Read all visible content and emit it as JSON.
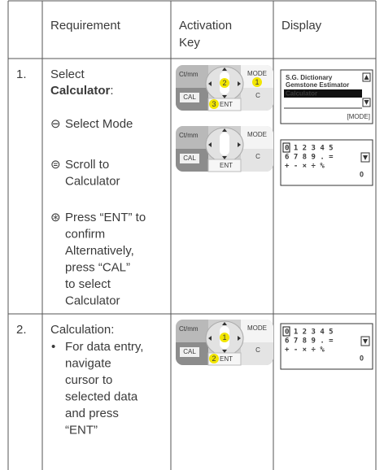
{
  "table": {
    "header": {
      "requirement": "Requirement",
      "activation_key": [
        "Activation",
        "Key"
      ],
      "display": "Display"
    },
    "rows": [
      {
        "number": "1.",
        "requirement": {
          "lead": "Select",
          "bold": "Calculator",
          "colon": ":",
          "steps": [
            {
              "symbol": "⊖",
              "lines": [
                "Select Mode"
              ]
            },
            {
              "symbol": "⊜",
              "lines": [
                "Scroll to",
                "Calculator"
              ]
            },
            {
              "symbol": "⊛",
              "lines": [
                "Press “ENT” to",
                "confirm",
                "Alternatively,",
                "press “CAL”",
                "to select",
                "Calculator"
              ]
            }
          ]
        },
        "keypads": [
          {
            "ctmm": "Ct/mm",
            "mode": "MODE",
            "cal": "CAL",
            "ent": "ENT",
            "c": "C",
            "center_badge": "2",
            "mode_badge": "1",
            "ent_badge": "3"
          },
          {
            "ctmm": "Ct/mm",
            "mode": "MODE",
            "cal": "CAL",
            "ent": "ENT",
            "c": "C"
          }
        ],
        "displays": [
          {
            "items": [
              "S.G. Dictionary",
              "Gemstone Estimator"
            ],
            "highlighted_item": "Calculator",
            "footer": "[MODE]"
          },
          {
            "keys": [
              "0 1 2 3 4 5",
              "6 7 8 9 . =",
              "+ - × ÷ %"
            ],
            "result": "0"
          }
        ]
      },
      {
        "number": "2.",
        "requirement": {
          "lead": "Calculation:",
          "bullet": "•",
          "lines": [
            "For data entry,",
            "navigate",
            "cursor to",
            "selected data",
            "and press",
            "“ENT”"
          ]
        },
        "keypads": [
          {
            "ctmm": "Ct/mm",
            "mode": "MODE",
            "cal": "CAL",
            "ent": "ENT",
            "c": "C",
            "center_badge": "1",
            "ent_badge": "2"
          }
        ],
        "displays": [
          {
            "keys": [
              "0 1 2 3 4 5",
              "6 7 8 9 . =",
              "+ - × ÷ %"
            ],
            "result": "0"
          }
        ]
      }
    ]
  }
}
